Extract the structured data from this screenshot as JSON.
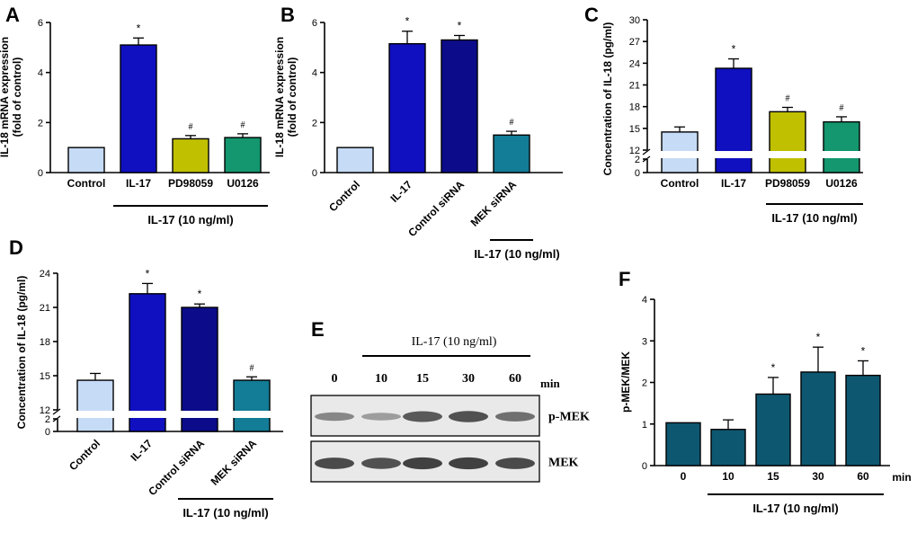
{
  "colors": {
    "control": "#c6dbf6",
    "il17": "#1010c0",
    "pd98059": "#c0c000",
    "u0126": "#14966e",
    "control_sirna": "#0c0c8a",
    "mek_sirna": "#137c96",
    "panel_f": "#0e5770",
    "axis": "#000000"
  },
  "chart_data": [
    {
      "panel": "A",
      "type": "bar",
      "ylabel": "IL-18 mRNA expression\n(fold of control)",
      "ylim": [
        0,
        6
      ],
      "yticks": [
        0,
        2,
        4,
        6
      ],
      "categories": [
        "Control",
        "IL-17",
        "PD98059",
        "U0126"
      ],
      "values": [
        1.0,
        5.1,
        1.35,
        1.4
      ],
      "errors": [
        0,
        0.28,
        0.13,
        0.15
      ],
      "annotations": [
        "",
        "*",
        "#",
        "#"
      ],
      "bar_colors": [
        "control",
        "il17",
        "pd98059",
        "u0126"
      ],
      "group_label": "IL-17 (10 ng/ml)",
      "group_span": [
        1,
        3
      ]
    },
    {
      "panel": "B",
      "type": "bar",
      "ylabel": "IL-18 mRNA expression\n(fold of control)",
      "ylim": [
        0,
        6
      ],
      "yticks": [
        0,
        2,
        4,
        6
      ],
      "categories": [
        "Control",
        "IL-17",
        "Control siRNA",
        "MEK siRNA"
      ],
      "values": [
        1.0,
        5.15,
        5.3,
        1.5
      ],
      "errors": [
        0,
        0.5,
        0.18,
        0.15
      ],
      "annotations": [
        "",
        "*",
        "*",
        "#"
      ],
      "bar_colors": [
        "control",
        "il17",
        "control_sirna",
        "mek_sirna"
      ],
      "group_label": "IL-17 (10 ng/ml)",
      "group_span": [
        3,
        3
      ]
    },
    {
      "panel": "C",
      "type": "bar",
      "ylabel": "Concentration of IL-18 (pg/ml)",
      "broken_axis": true,
      "ylim_lower": [
        0,
        2
      ],
      "ylim_upper": [
        12,
        30
      ],
      "yticks_lower": [
        0,
        2
      ],
      "yticks_upper": [
        12,
        15,
        18,
        21,
        24,
        27,
        30
      ],
      "categories": [
        "Control",
        "IL-17",
        "PD98059",
        "U0126"
      ],
      "values": [
        14.5,
        23.3,
        17.3,
        15.9
      ],
      "errors": [
        0.7,
        1.3,
        0.6,
        0.7
      ],
      "annotations": [
        "",
        "*",
        "#",
        "#"
      ],
      "bar_colors": [
        "control",
        "il17",
        "pd98059",
        "u0126"
      ],
      "group_label": "IL-17 (10 ng/ml)",
      "group_span": [
        2,
        3
      ]
    },
    {
      "panel": "D",
      "type": "bar",
      "ylabel": "Concentration of IL-18 (pg/ml)",
      "broken_axis": true,
      "ylim_lower": [
        0,
        2
      ],
      "ylim_upper": [
        12,
        24
      ],
      "yticks_lower": [
        0,
        2
      ],
      "yticks_upper": [
        12,
        15,
        18,
        21,
        24
      ],
      "categories": [
        "Control",
        "IL-17",
        "Control siRNA",
        "MEK siRNA"
      ],
      "values": [
        14.6,
        22.2,
        21.0,
        14.6
      ],
      "errors": [
        0.6,
        0.9,
        0.3,
        0.3
      ],
      "annotations": [
        "",
        "*",
        "*",
        "#"
      ],
      "bar_colors": [
        "control",
        "il17",
        "control_sirna",
        "mek_sirna"
      ],
      "group_label": "IL-17 (10 ng/ml)",
      "group_span": [
        2,
        3
      ]
    },
    {
      "panel": "E",
      "type": "blot",
      "group_label": "IL-17 (10 ng/ml)",
      "lanes": [
        "0",
        "10",
        "15",
        "30",
        "60"
      ],
      "lane_unit": "min",
      "rows": [
        "p-MEK",
        "MEK"
      ],
      "pmek_intensity": [
        0.45,
        0.3,
        0.75,
        0.8,
        0.6
      ],
      "mek_intensity": [
        0.85,
        0.8,
        0.9,
        0.9,
        0.85
      ]
    },
    {
      "panel": "F",
      "type": "bar",
      "ylabel": "p-MEK/MEK",
      "ylim": [
        0,
        4
      ],
      "yticks": [
        0,
        1,
        2,
        3,
        4
      ],
      "categories": [
        "0",
        "10",
        "15",
        "30",
        "60"
      ],
      "x_unit": "min",
      "values": [
        1.03,
        0.87,
        1.72,
        2.25,
        2.17
      ],
      "errors": [
        0,
        0.23,
        0.4,
        0.6,
        0.35
      ],
      "annotations": [
        "",
        "",
        "*",
        "*",
        "*"
      ],
      "bar_colors": [
        "panel_f",
        "panel_f",
        "panel_f",
        "panel_f",
        "panel_f"
      ],
      "group_label": "IL-17 (10 ng/ml)",
      "group_span": [
        1,
        4
      ]
    }
  ]
}
